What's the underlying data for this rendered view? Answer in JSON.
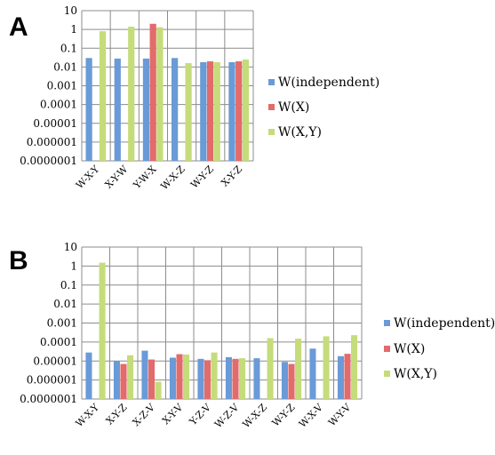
{
  "chart_data": [
    {
      "panel": "A",
      "type": "bar",
      "yscale": "log",
      "ylim": [
        1e-07,
        10
      ],
      "yticks": [
        "10",
        "1",
        "0.1",
        "0.01",
        "0.001",
        "0.0001",
        "0.00001",
        "0.000001",
        "0.0000001"
      ],
      "categories": [
        "W-X-Y",
        "X-Y-W",
        "Y-W-X",
        "W-X-Z",
        "W-Y-Z",
        "X-Y-Z"
      ],
      "series": [
        {
          "name": "W(independent)",
          "color": "#6a9ad7",
          "values": [
            0.03,
            0.028,
            0.028,
            0.03,
            0.018,
            0.018
          ]
        },
        {
          "name": "W(X)",
          "color": "#e26b6b",
          "values": [
            null,
            null,
            2.0,
            null,
            0.02,
            0.02
          ]
        },
        {
          "name": "W(X,Y)",
          "color": "#c5dc7a",
          "values": [
            0.8,
            1.4,
            1.3,
            0.016,
            0.018,
            0.025
          ]
        }
      ],
      "legend_position": "right",
      "grid": true
    },
    {
      "panel": "B",
      "type": "bar",
      "yscale": "log",
      "ylim": [
        1e-07,
        10
      ],
      "yticks": [
        "10",
        "1",
        "0.1",
        "0.01",
        "0.001",
        "0.0001",
        "0.00001",
        "0.000001",
        "0.0000001"
      ],
      "categories": [
        "W-X-Y",
        "X-Y-Z",
        "X-Z-V",
        "X-Y-V",
        "Y-Z-V",
        "W-Z-V",
        "W-X-Z",
        "W-Y-Z",
        "W-X-V",
        "W-Y-V"
      ],
      "series": [
        {
          "name": "W(independent)",
          "color": "#6a9ad7",
          "values": [
            2.8e-05,
            1e-05,
            3.5e-05,
            1.5e-05,
            1.3e-05,
            1.6e-05,
            1.4e-05,
            9e-06,
            4.5e-05,
            1.8e-05
          ]
        },
        {
          "name": "W(X)",
          "color": "#e26b6b",
          "values": [
            null,
            7e-06,
            1.2e-05,
            2.3e-05,
            1.1e-05,
            1.3e-05,
            null,
            7e-06,
            null,
            2.4e-05
          ]
        },
        {
          "name": "W(X,Y)",
          "color": "#c5dc7a",
          "values": [
            1.5,
            2e-05,
            8e-07,
            2.2e-05,
            2.8e-05,
            1.4e-05,
            0.00016,
            0.00015,
            0.0002,
            0.00023
          ]
        }
      ],
      "legend_position": "right",
      "grid": true
    }
  ]
}
